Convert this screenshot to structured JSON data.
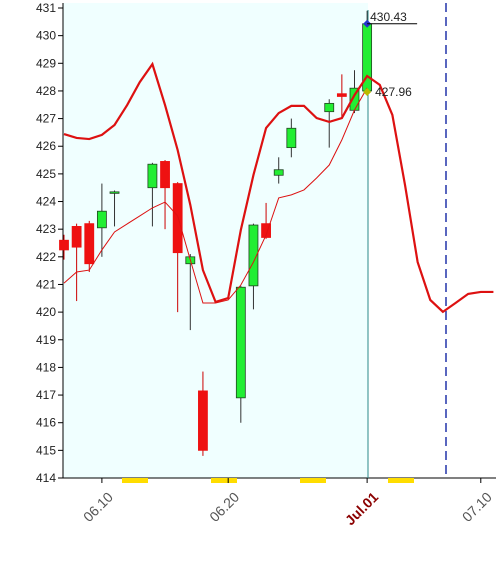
{
  "chart_data": {
    "type": "candlestick",
    "categories": [
      null,
      null,
      null,
      "06.10",
      null,
      null,
      null,
      null,
      null,
      null,
      null,
      null,
      null,
      "06.20",
      null,
      null,
      null,
      null,
      null,
      null,
      null,
      null,
      null,
      null,
      "Jul.01",
      null,
      null,
      null,
      null,
      null,
      null,
      null,
      null,
      "07.10",
      null
    ],
    "open": [
      422.6,
      423.1,
      423.2,
      423.05,
      424.3,
      null,
      null,
      424.5,
      425.45,
      424.65,
      421.75,
      417.15,
      null,
      null,
      416.9,
      420.95,
      423.2,
      424.95,
      425.95,
      null,
      null,
      427.25,
      427.9,
      427.3,
      428.0,
      null,
      null,
      null,
      null,
      null,
      null,
      null,
      null,
      null,
      null
    ],
    "high": [
      422.8,
      423.2,
      423.3,
      424.65,
      424.4,
      null,
      null,
      425.4,
      425.5,
      424.7,
      422.1,
      417.85,
      null,
      null,
      420.95,
      423.2,
      423.95,
      425.6,
      427.0,
      null,
      null,
      427.7,
      428.6,
      428.75,
      430.9,
      null,
      null,
      null,
      null,
      null,
      null,
      null,
      null,
      null,
      null
    ],
    "low": [
      421.9,
      420.4,
      421.45,
      422.0,
      423.1,
      null,
      null,
      423.1,
      423.0,
      420.0,
      419.35,
      414.8,
      null,
      null,
      416.0,
      420.1,
      422.65,
      424.65,
      425.6,
      null,
      null,
      425.95,
      427.0,
      427.2,
      427.9,
      null,
      null,
      null,
      null,
      null,
      null,
      null,
      null,
      null,
      null
    ],
    "close": [
      422.25,
      422.35,
      421.75,
      423.65,
      424.35,
      null,
      null,
      425.35,
      424.5,
      422.15,
      422.0,
      415.0,
      null,
      null,
      420.9,
      423.15,
      422.7,
      425.15,
      426.65,
      null,
      null,
      427.55,
      427.8,
      428.1,
      430.43,
      null,
      null,
      null,
      null,
      null,
      null,
      null,
      null,
      null,
      null
    ],
    "up_color": "#22ee33",
    "down_color": "#ee1111",
    "lines": [
      {
        "color": "#dd1111",
        "width": 2.2,
        "values": [
          426.44,
          426.3,
          426.26,
          426.41,
          426.77,
          427.49,
          428.32,
          428.97,
          427.49,
          425.86,
          423.88,
          421.52,
          420.37,
          420.51,
          422.97,
          424.96,
          426.66,
          427.2,
          427.46,
          427.46,
          427.02,
          426.88,
          427.02,
          427.85,
          428.54,
          428.22,
          427.13,
          424.6,
          421.81,
          420.44,
          420.01,
          420.33,
          420.66,
          420.73,
          420.73
        ]
      },
      {
        "color": "#dd1111",
        "width": 1,
        "values": [
          421.05,
          421.45,
          421.52,
          422.25,
          422.9,
          423.19,
          423.48,
          423.77,
          423.98,
          423.48,
          421.89,
          420.33,
          420.33,
          420.44,
          420.98,
          421.81,
          422.79,
          424.13,
          424.24,
          424.42,
          424.85,
          425.32,
          426.23,
          427.31,
          428.11,
          null,
          null,
          null,
          null,
          null,
          null,
          null,
          null,
          null,
          null
        ]
      }
    ],
    "markers": [
      {
        "value": 430.43,
        "color": "#2233cc"
      },
      {
        "value": 427.96,
        "color": "#bbbb00"
      }
    ],
    "ylim": [
      414,
      431
    ],
    "yticks": [
      414,
      415,
      416,
      417,
      418,
      419,
      420,
      421,
      422,
      423,
      424,
      425,
      426,
      427,
      428,
      429,
      430,
      431
    ]
  }
}
